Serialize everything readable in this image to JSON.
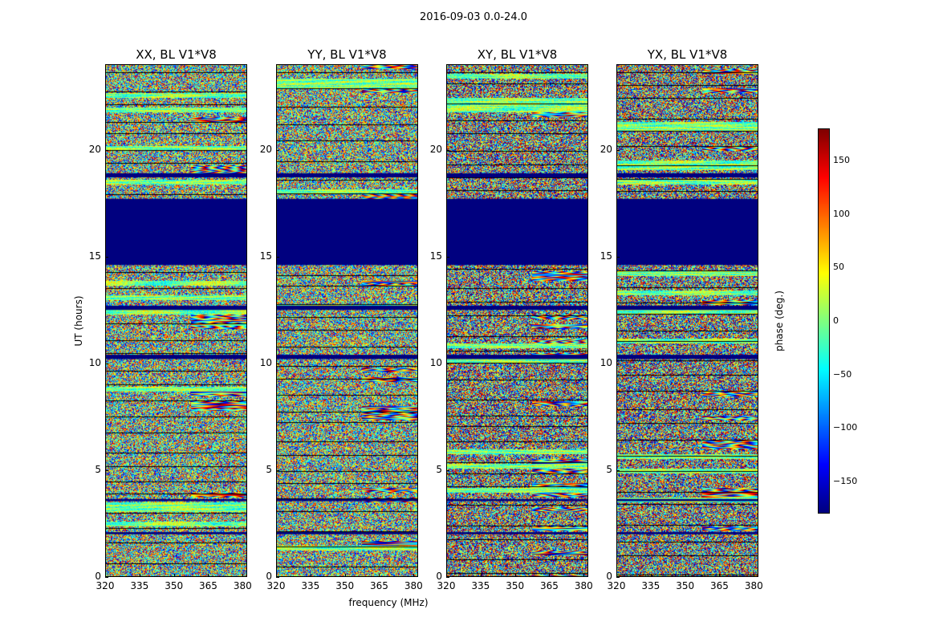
{
  "suptitle": "2016-09-03 0.0-24.0",
  "chart_data": {
    "type": "heatmap",
    "xlabel": "frequency (MHz)",
    "ylabel": "UT (hours)",
    "xlim": [
      320,
      382
    ],
    "ylim": [
      0,
      24
    ],
    "x_ticks": [
      "320",
      "335",
      "350",
      "365",
      "380"
    ],
    "y_ticks": [
      "0",
      "5",
      "10",
      "15",
      "20"
    ],
    "colorbar": {
      "label": "phase (deg.)",
      "colormap": "jet",
      "range": [
        -180,
        180
      ],
      "ticks": [
        "150",
        "100",
        "50",
        "0",
        "−50",
        "−100",
        "−150"
      ]
    },
    "panels": [
      {
        "title": "XX, BL V1*V8"
      },
      {
        "title": "YY, BL V1*V8"
      },
      {
        "title": "XY, BL V1*V8"
      },
      {
        "title": "YX, BL V1*V8"
      }
    ],
    "flagged_time_ranges_hours": [
      [
        14.6,
        17.7
      ],
      [
        18.7,
        18.9
      ],
      [
        12.5,
        12.7
      ],
      [
        10.2,
        10.4
      ],
      [
        3.55,
        3.65
      ],
      [
        2.0,
        2.1
      ]
    ],
    "flag_color": "#00007f"
  }
}
